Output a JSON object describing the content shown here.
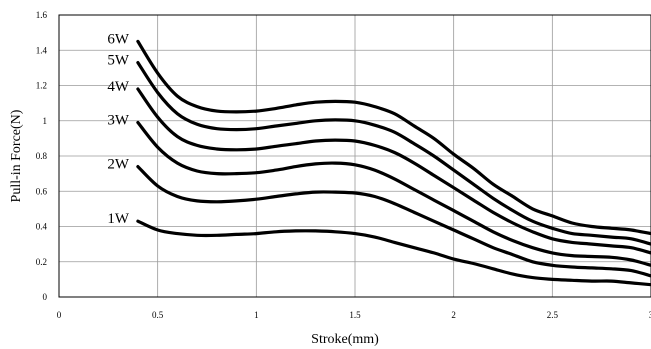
{
  "chart_data": {
    "type": "line",
    "title": "",
    "xlabel": "Stroke(mm)",
    "ylabel": "Pull-in Force(N)",
    "xlim": [
      0,
      3
    ],
    "ylim": [
      0,
      1.6
    ],
    "grid": true,
    "x_ticks": [
      0,
      0.5,
      1,
      1.5,
      2,
      2.5,
      3
    ],
    "x_tick_labels": [
      "0",
      "0.5",
      "1",
      "1.5",
      "2",
      "2.5",
      "3"
    ],
    "y_ticks": [
      0,
      0.2,
      0.4,
      0.6,
      0.8,
      1.0,
      1.2,
      1.4,
      1.6
    ],
    "y_tick_labels": [
      "0",
      "0.2",
      "0.4",
      "0.6",
      "0.8",
      "1",
      "1.2",
      "1.4",
      "1.6"
    ],
    "x": [
      0.4,
      0.5,
      0.6,
      0.7,
      0.8,
      0.9,
      1.0,
      1.1,
      1.2,
      1.3,
      1.4,
      1.5,
      1.6,
      1.7,
      1.8,
      1.9,
      2.0,
      2.1,
      2.2,
      2.3,
      2.4,
      2.5,
      2.6,
      2.7,
      2.8,
      2.9,
      3.0
    ],
    "series": [
      {
        "name": "1W",
        "values": [
          0.43,
          0.38,
          0.36,
          0.35,
          0.35,
          0.355,
          0.36,
          0.37,
          0.375,
          0.375,
          0.37,
          0.36,
          0.34,
          0.31,
          0.28,
          0.25,
          0.215,
          0.19,
          0.16,
          0.13,
          0.11,
          0.1,
          0.095,
          0.09,
          0.09,
          0.08,
          0.07
        ]
      },
      {
        "name": "2W",
        "values": [
          0.74,
          0.63,
          0.57,
          0.545,
          0.54,
          0.545,
          0.555,
          0.57,
          0.585,
          0.595,
          0.595,
          0.59,
          0.57,
          0.53,
          0.48,
          0.43,
          0.38,
          0.33,
          0.28,
          0.24,
          0.2,
          0.18,
          0.17,
          0.165,
          0.16,
          0.15,
          0.12
        ]
      },
      {
        "name": "3W",
        "values": [
          0.99,
          0.85,
          0.76,
          0.715,
          0.7,
          0.7,
          0.705,
          0.72,
          0.74,
          0.755,
          0.76,
          0.75,
          0.72,
          0.67,
          0.61,
          0.55,
          0.49,
          0.43,
          0.37,
          0.32,
          0.28,
          0.25,
          0.235,
          0.23,
          0.225,
          0.21,
          0.18
        ]
      },
      {
        "name": "4W",
        "values": [
          1.18,
          1.02,
          0.91,
          0.86,
          0.84,
          0.835,
          0.84,
          0.855,
          0.87,
          0.885,
          0.89,
          0.885,
          0.86,
          0.82,
          0.76,
          0.69,
          0.62,
          0.55,
          0.48,
          0.42,
          0.37,
          0.33,
          0.31,
          0.3,
          0.29,
          0.28,
          0.25
        ]
      },
      {
        "name": "5W",
        "values": [
          1.33,
          1.16,
          1.04,
          0.98,
          0.955,
          0.95,
          0.955,
          0.97,
          0.985,
          1.0,
          1.005,
          1.0,
          0.975,
          0.935,
          0.87,
          0.8,
          0.72,
          0.64,
          0.56,
          0.49,
          0.43,
          0.39,
          0.36,
          0.35,
          0.34,
          0.33,
          0.3
        ]
      },
      {
        "name": "6W",
        "values": [
          1.45,
          1.27,
          1.14,
          1.08,
          1.055,
          1.05,
          1.055,
          1.07,
          1.09,
          1.105,
          1.11,
          1.105,
          1.08,
          1.04,
          0.97,
          0.9,
          0.81,
          0.73,
          0.64,
          0.57,
          0.5,
          0.46,
          0.42,
          0.4,
          0.39,
          0.38,
          0.36
        ]
      }
    ]
  }
}
